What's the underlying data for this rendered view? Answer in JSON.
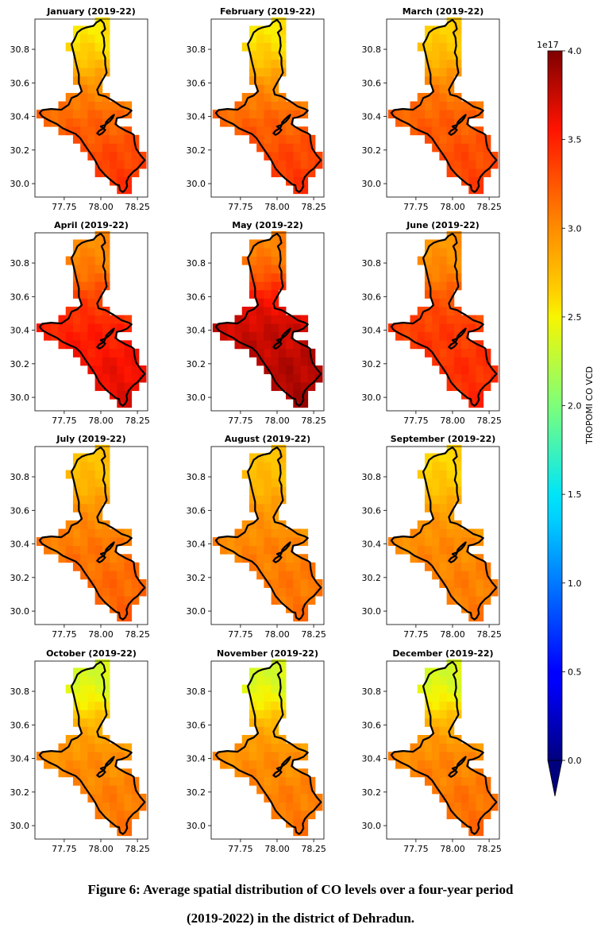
{
  "figure": {
    "caption_line1": "Figure 6: Average spatial distribution of CO levels over a four-year period",
    "caption_line2": "(2019-2022) in the district of Dehradun."
  },
  "colorbar": {
    "label": "TROPOMI CO VCD",
    "exponent": "1e17",
    "ticks": [
      "0.0",
      "0.5",
      "1.0",
      "1.5",
      "2.0",
      "2.5",
      "3.0",
      "3.5",
      "4.0"
    ],
    "min": 0.0,
    "max": 4.0,
    "extend": "min",
    "colormap": "jet"
  },
  "chart_data": [
    {
      "type": "heatmap",
      "title": "January (2019-22)",
      "north": 2.55,
      "center": 3.1,
      "south": 3.4,
      "xticks": [
        "77.75",
        "78.00",
        "78.25"
      ],
      "yticks": [
        "30.8",
        "30.6",
        "30.4",
        "30.2",
        "30.0"
      ],
      "xlim": [
        77.55,
        78.32
      ],
      "ylim": [
        29.92,
        30.98
      ]
    },
    {
      "type": "heatmap",
      "title": "February (2019-22)",
      "north": 2.55,
      "center": 3.1,
      "south": 3.4,
      "xticks": [
        "77.75",
        "78.00",
        "78.25"
      ],
      "yticks": [
        "30.8",
        "30.6",
        "30.4",
        "30.2",
        "30.0"
      ],
      "xlim": [
        77.55,
        78.32
      ],
      "ylim": [
        29.92,
        30.98
      ]
    },
    {
      "type": "heatmap",
      "title": "March (2019-22)",
      "north": 2.65,
      "center": 3.15,
      "south": 3.35,
      "xticks": [
        "77.75",
        "78.00",
        "78.25"
      ],
      "yticks": [
        "30.8",
        "30.6",
        "30.4",
        "30.2",
        "30.0"
      ],
      "xlim": [
        77.55,
        78.32
      ],
      "ylim": [
        29.92,
        30.98
      ]
    },
    {
      "type": "heatmap",
      "title": "April (2019-22)",
      "north": 3.0,
      "center": 3.45,
      "south": 3.65,
      "xticks": [
        "77.75",
        "78.00",
        "78.25"
      ],
      "yticks": [
        "30.8",
        "30.6",
        "30.4",
        "30.2",
        "30.0"
      ],
      "xlim": [
        77.55,
        78.32
      ],
      "ylim": [
        29.92,
        30.98
      ]
    },
    {
      "type": "heatmap",
      "title": "May (2019-22)",
      "north": 3.05,
      "center": 3.7,
      "south": 3.85,
      "xticks": [
        "77.75",
        "78.00",
        "78.25"
      ],
      "yticks": [
        "30.8",
        "30.6",
        "30.4",
        "30.2",
        "30.0"
      ],
      "xlim": [
        77.55,
        78.32
      ],
      "ylim": [
        29.92,
        30.98
      ]
    },
    {
      "type": "heatmap",
      "title": "June (2019-22)",
      "north": 2.95,
      "center": 3.35,
      "south": 3.45,
      "xticks": [
        "77.75",
        "78.00",
        "78.25"
      ],
      "yticks": [
        "30.8",
        "30.6",
        "30.4",
        "30.2",
        "30.0"
      ],
      "xlim": [
        77.55,
        78.32
      ],
      "ylim": [
        29.92,
        30.98
      ]
    },
    {
      "type": "heatmap",
      "title": "July (2019-22)",
      "north": 2.72,
      "center": 3.05,
      "south": 3.2,
      "xticks": [
        "77.75",
        "78.00",
        "78.25"
      ],
      "yticks": [
        "30.8",
        "30.6",
        "30.4",
        "30.2",
        "30.0"
      ],
      "xlim": [
        77.55,
        78.32
      ],
      "ylim": [
        29.92,
        30.98
      ]
    },
    {
      "type": "heatmap",
      "title": "August (2019-22)",
      "north": 2.72,
      "center": 3.0,
      "south": 3.12,
      "xticks": [
        "77.75",
        "78.00",
        "78.25"
      ],
      "yticks": [
        "30.8",
        "30.6",
        "30.4",
        "30.2",
        "30.0"
      ],
      "xlim": [
        77.55,
        78.32
      ],
      "ylim": [
        29.92,
        30.98
      ]
    },
    {
      "type": "heatmap",
      "title": "September (2019-22)",
      "north": 2.62,
      "center": 2.98,
      "south": 3.08,
      "xticks": [
        "77.75",
        "78.00",
        "78.25"
      ],
      "yticks": [
        "30.8",
        "30.6",
        "30.4",
        "30.2",
        "30.0"
      ],
      "xlim": [
        77.55,
        78.32
      ],
      "ylim": [
        29.92,
        30.98
      ]
    },
    {
      "type": "heatmap",
      "title": "October (2019-22)",
      "north": 2.35,
      "center": 2.95,
      "south": 3.1,
      "xticks": [
        "77.75",
        "78.00",
        "78.25"
      ],
      "yticks": [
        "30.8",
        "30.6",
        "30.4",
        "30.2",
        "30.0"
      ],
      "xlim": [
        77.55,
        78.32
      ],
      "ylim": [
        29.92,
        30.98
      ]
    },
    {
      "type": "heatmap",
      "title": "November (2019-22)",
      "north": 2.35,
      "center": 2.95,
      "south": 3.1,
      "xticks": [
        "77.75",
        "78.00",
        "78.25"
      ],
      "yticks": [
        "30.8",
        "30.6",
        "30.4",
        "30.2",
        "30.0"
      ],
      "xlim": [
        77.55,
        78.32
      ],
      "ylim": [
        29.92,
        30.98
      ]
    },
    {
      "type": "heatmap",
      "title": "December (2019-22)",
      "north": 2.35,
      "center": 2.98,
      "south": 3.15,
      "xticks": [
        "77.75",
        "78.00",
        "78.25"
      ],
      "yticks": [
        "30.8",
        "30.6",
        "30.4",
        "30.2",
        "30.0"
      ],
      "xlim": [
        77.55,
        78.32
      ],
      "ylim": [
        29.92,
        30.98
      ]
    }
  ]
}
